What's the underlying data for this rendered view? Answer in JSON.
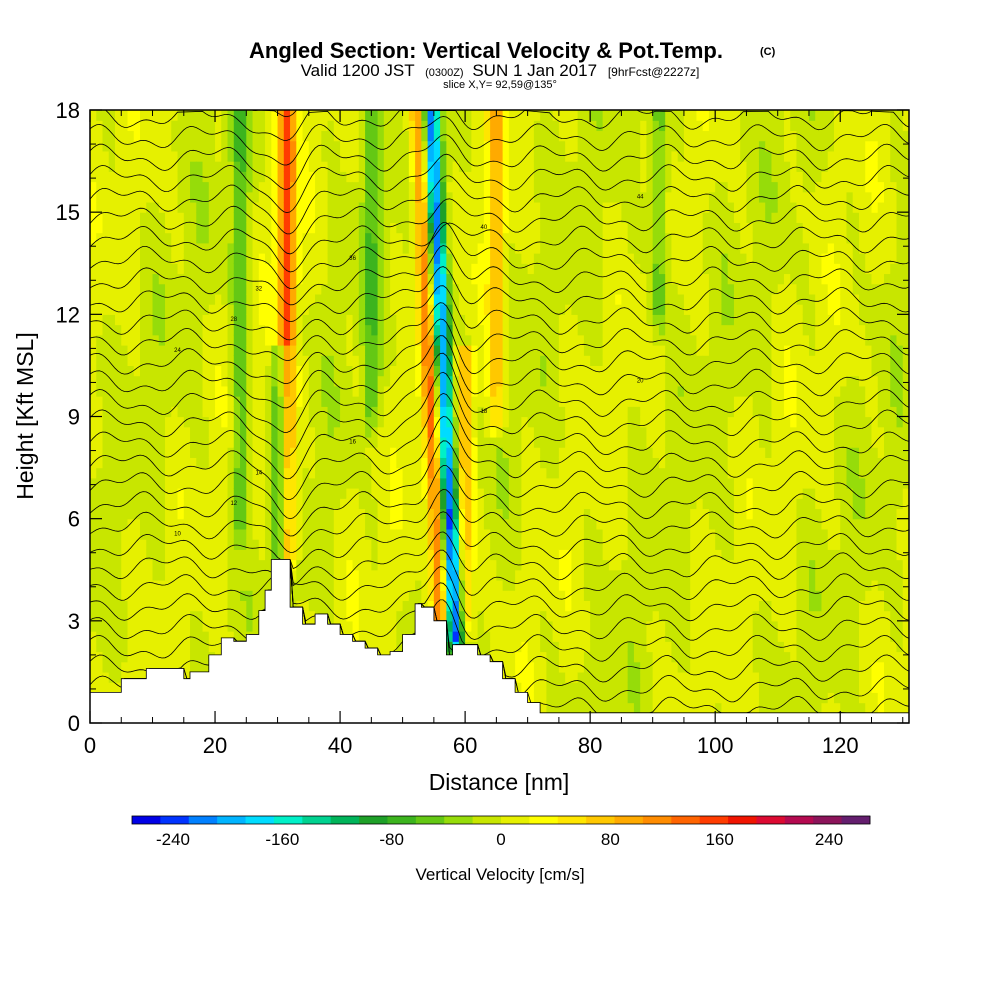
{
  "chart_data": {
    "type": "heatmap",
    "title": "Angled Section: Vertical Velocity & Pot.Temp.",
    "title_mark": "(C)",
    "subtitle": {
      "prefix": "Valid 1200 JST",
      "utc": "(0300Z)",
      "date": "SUN 1 Jan 2017",
      "forecast": "[9hrFcst@2227z]"
    },
    "slice_info": "slice X,Y= 92,59@135°",
    "xlabel": "Distance [nm]",
    "ylabel": "Height [Kft MSL]",
    "xlim": [
      0,
      131
    ],
    "ylim": [
      0,
      18
    ],
    "x_ticks": [
      "0",
      "20",
      "40",
      "60",
      "80",
      "100",
      "120"
    ],
    "x_tick_values": [
      0,
      20,
      40,
      60,
      80,
      100,
      120
    ],
    "y_ticks": [
      "0",
      "3",
      "6",
      "9",
      "12",
      "15",
      "18"
    ],
    "y_tick_values": [
      0,
      3,
      6,
      9,
      12,
      15,
      18
    ],
    "grid": false,
    "colorbar": {
      "label": "Vertical Velocity [cm/s]",
      "tick_labels": [
        "-240",
        "-160",
        "-80",
        "0",
        "80",
        "160",
        "240"
      ],
      "tick_values": [
        -240,
        -160,
        -80,
        0,
        80,
        160,
        240
      ],
      "min": -270,
      "max": 270,
      "colors": [
        "#0000e6",
        "#0033ff",
        "#0080ff",
        "#00b4ff",
        "#00dcff",
        "#00f0c8",
        "#00d290",
        "#00b45a",
        "#1ea028",
        "#3cb41e",
        "#64c814",
        "#96dc0a",
        "#c8e600",
        "#e6f000",
        "#ffff00",
        "#ffe600",
        "#ffc800",
        "#ffaa00",
        "#ff8c00",
        "#ff6400",
        "#ff3c00",
        "#f01400",
        "#dc0a32",
        "#b40a50",
        "#8c145a",
        "#641e6e"
      ]
    },
    "updrafts": [
      {
        "x": 31.5,
        "w": 150,
        "z_range": [
          5,
          18
        ]
      },
      {
        "x": 54,
        "w": 140,
        "z_range": [
          3,
          18
        ]
      },
      {
        "x": 60,
        "w": 90,
        "z_range": [
          3,
          10
        ]
      },
      {
        "x": 65,
        "w": 80,
        "z_range": [
          9,
          18
        ]
      }
    ],
    "downdrafts": [
      {
        "x": 56,
        "w": -240,
        "z_range": [
          2.5,
          18
        ]
      },
      {
        "x": 30.5,
        "w": -110,
        "z_range": [
          5,
          10
        ]
      },
      {
        "x": 24,
        "w": -60,
        "z_range": [
          6,
          18
        ]
      },
      {
        "x": 45,
        "w": -50,
        "z_range": [
          9,
          18
        ]
      },
      {
        "x": 91,
        "w": -60,
        "z_range": [
          12,
          18
        ]
      }
    ],
    "terrain_profile_x": [
      0,
      5,
      9,
      13,
      15,
      16,
      19,
      21,
      23,
      25,
      27,
      28,
      29,
      31,
      32,
      34,
      36,
      38,
      40,
      42,
      44,
      46,
      48,
      50,
      52,
      53,
      55,
      57,
      58,
      60,
      62,
      64,
      66,
      68,
      70,
      72,
      131
    ],
    "terrain_profile_z": [
      0.9,
      1.3,
      1.6,
      1.6,
      1.3,
      1.5,
      2.0,
      2.5,
      2.4,
      2.6,
      3.3,
      3.9,
      4.8,
      4.8,
      3.4,
      2.9,
      3.2,
      2.9,
      2.6,
      2.4,
      2.2,
      2.0,
      2.1,
      2.6,
      3.5,
      3.4,
      3.0,
      2.0,
      2.3,
      2.3,
      2.0,
      1.8,
      1.3,
      0.9,
      0.6,
      0.3,
      0.3
    ],
    "theta_contours": {
      "base_levels": [
        -8,
        -6,
        -4,
        -2,
        0,
        2,
        4,
        6,
        8,
        10,
        12,
        14,
        16,
        18,
        20,
        22,
        24,
        26,
        28,
        30,
        32,
        34,
        36,
        38,
        40,
        42,
        44,
        46,
        48,
        50,
        52
      ],
      "labeled_values": [
        "10",
        "12",
        "14",
        "16",
        "18",
        "20",
        "24",
        "28",
        "32",
        "36",
        "40",
        "44"
      ]
    }
  }
}
